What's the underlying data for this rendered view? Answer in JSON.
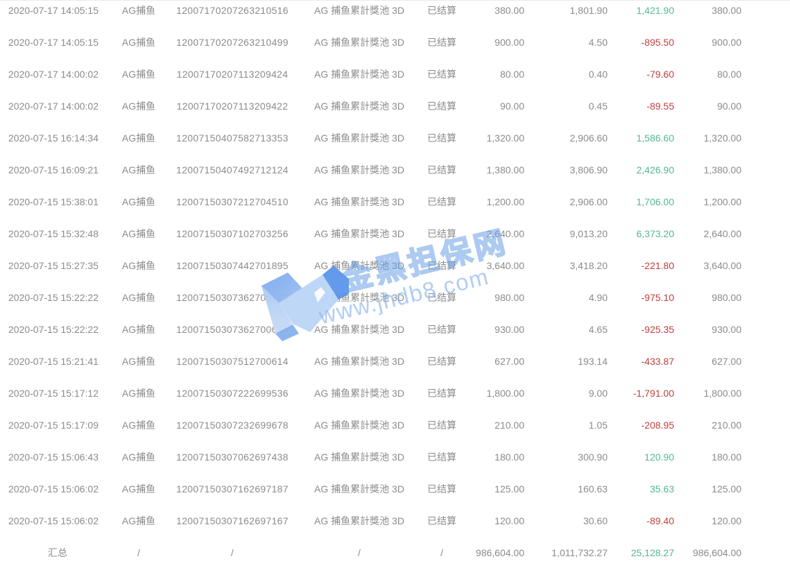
{
  "table": {
    "rows": [
      [
        "2020-07-17 14:05:15",
        "AG捕鱼",
        "12007170207263210516",
        "AG 捕鱼累計獎池 3D",
        "已结算",
        "380.00",
        "1,801.90",
        "1,421.90",
        "380.00"
      ],
      [
        "2020-07-17 14:05:15",
        "AG捕鱼",
        "12007170207263210499",
        "AG 捕鱼累計獎池 3D",
        "已结算",
        "900.00",
        "4.50",
        "-895.50",
        "900.00"
      ],
      [
        "2020-07-17 14:00:02",
        "AG捕鱼",
        "12007170207113209424",
        "AG 捕鱼累計獎池 3D",
        "已结算",
        "80.00",
        "0.40",
        "-79.60",
        "80.00"
      ],
      [
        "2020-07-17 14:00:02",
        "AG捕鱼",
        "12007170207113209422",
        "AG 捕鱼累計獎池 3D",
        "已结算",
        "90.00",
        "0.45",
        "-89.55",
        "90.00"
      ],
      [
        "2020-07-15 16:14:34",
        "AG捕鱼",
        "12007150407582713353",
        "AG 捕鱼累計獎池 3D",
        "已结算",
        "1,320.00",
        "2,906.60",
        "1,586.60",
        "1,320.00"
      ],
      [
        "2020-07-15 16:09:21",
        "AG捕鱼",
        "12007150407492712124",
        "AG 捕鱼累計獎池 3D",
        "已结算",
        "1,380.00",
        "3,806.90",
        "2,426.90",
        "1,380.00"
      ],
      [
        "2020-07-15 15:38:01",
        "AG捕鱼",
        "12007150307212704510",
        "AG 捕鱼累計獎池 3D",
        "已结算",
        "1,200.00",
        "2,906.00",
        "1,706.00",
        "1,200.00"
      ],
      [
        "2020-07-15 15:32:48",
        "AG捕鱼",
        "12007150307102703256",
        "AG 捕鱼累計獎池 3D",
        "已结算",
        "2,640.00",
        "9,013.20",
        "6,373.20",
        "2,640.00"
      ],
      [
        "2020-07-15 15:27:35",
        "AG捕鱼",
        "12007150307442701895",
        "AG 捕鱼累計獎池 3D",
        "已结算",
        "3,640.00",
        "3,418.20",
        "-221.80",
        "3,640.00"
      ],
      [
        "2020-07-15 15:22:22",
        "AG捕鱼",
        "12007150307362700747",
        "AG 捕鱼累計獎池 3D",
        "已结算",
        "980.00",
        "4.90",
        "-975.10",
        "980.00"
      ],
      [
        "2020-07-15 15:22:22",
        "AG捕鱼",
        "12007150307362700684",
        "AG 捕鱼累計獎池 3D",
        "已结算",
        "930.00",
        "4.65",
        "-925.35",
        "930.00"
      ],
      [
        "2020-07-15 15:21:41",
        "AG捕鱼",
        "12007150307512700614",
        "AG 捕鱼累計獎池 3D",
        "已结算",
        "627.00",
        "193.14",
        "-433.87",
        "627.00"
      ],
      [
        "2020-07-15 15:17:12",
        "AG捕鱼",
        "12007150307222699536",
        "AG 捕鱼累計獎池 3D",
        "已结算",
        "1,800.00",
        "9.00",
        "-1,791.00",
        "1,800.00"
      ],
      [
        "2020-07-15 15:17:09",
        "AG捕鱼",
        "12007150307232699678",
        "AG 捕鱼累計獎池 3D",
        "已结算",
        "210.00",
        "1.05",
        "-208.95",
        "210.00"
      ],
      [
        "2020-07-15 15:06:43",
        "AG捕鱼",
        "12007150307062697438",
        "AG 捕鱼累計獎池 3D",
        "已结算",
        "180.00",
        "300.90",
        "120.90",
        "180.00"
      ],
      [
        "2020-07-15 15:06:02",
        "AG捕鱼",
        "12007150307162697187",
        "AG 捕鱼累計獎池 3D",
        "已结算",
        "125.00",
        "160.63",
        "35.63",
        "125.00"
      ],
      [
        "2020-07-15 15:06:02",
        "AG捕鱼",
        "12007150307162697167",
        "AG 捕鱼累計獎池 3D",
        "已结算",
        "120.00",
        "30.60",
        "-89.40",
        "120.00"
      ]
    ],
    "summary": [
      "汇总",
      "/",
      "/",
      "/",
      "/",
      "986,604.00",
      "1,011,732.27",
      "25,128.27",
      "986,604.00"
    ]
  },
  "watermark": {
    "brand": "金黑担保网",
    "url": "www.jhdb8.com"
  },
  "colors": {
    "text": "#8b8b8b",
    "profit_positive": "#53b98e",
    "profit_negative": "#c0403c",
    "watermark_blue": "#699ee4"
  }
}
